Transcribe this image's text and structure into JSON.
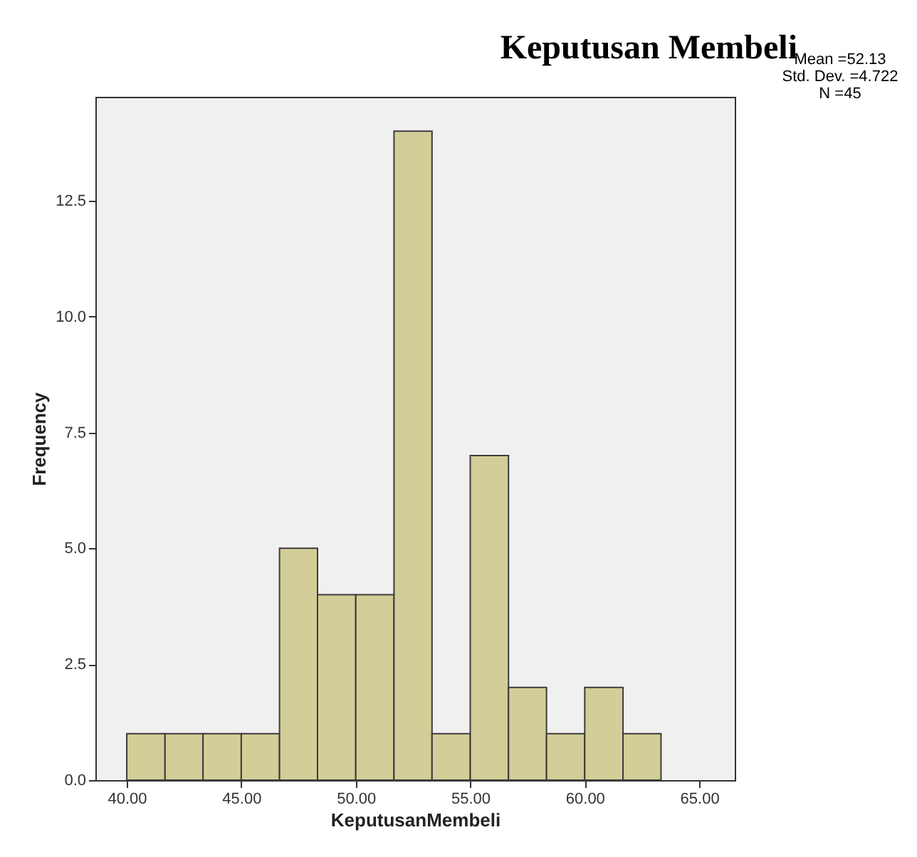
{
  "chart_data": {
    "type": "histogram",
    "title": "Keputusan Membeli",
    "xlabel": "KeputusanMembeli",
    "ylabel": "Frequency",
    "bins": [
      40,
      41.67,
      43.33,
      45,
      46.67,
      48.33,
      50,
      51.67,
      53.33,
      55,
      56.67,
      58.33,
      60,
      61.67,
      63.33
    ],
    "values": [
      1,
      1,
      1,
      1,
      5,
      4,
      4,
      14,
      1,
      7,
      2,
      1,
      2,
      1
    ],
    "color": "#d3ce97",
    "xlim": [
      38.63,
      66.55
    ],
    "xticks": [
      {
        "value": 40,
        "label": "40.00"
      },
      {
        "value": 45,
        "label": "45.00"
      },
      {
        "value": 50,
        "label": "50.00"
      },
      {
        "value": 55,
        "label": "55.00"
      },
      {
        "value": 60,
        "label": "60.00"
      },
      {
        "value": 65,
        "label": "65.00"
      }
    ],
    "ylim": [
      0,
      14.74
    ],
    "yticks": [
      {
        "value": 0,
        "label": "0.0"
      },
      {
        "value": 2.5,
        "label": "2.5"
      },
      {
        "value": 5,
        "label": "5.0"
      },
      {
        "value": 7.5,
        "label": "7.5"
      },
      {
        "value": 10,
        "label": "10.0"
      },
      {
        "value": 12.5,
        "label": "12.5"
      }
    ],
    "grid": false,
    "annotations": [
      "Mean =52.13",
      "Std. Dev. =4.722",
      "N =45"
    ]
  }
}
